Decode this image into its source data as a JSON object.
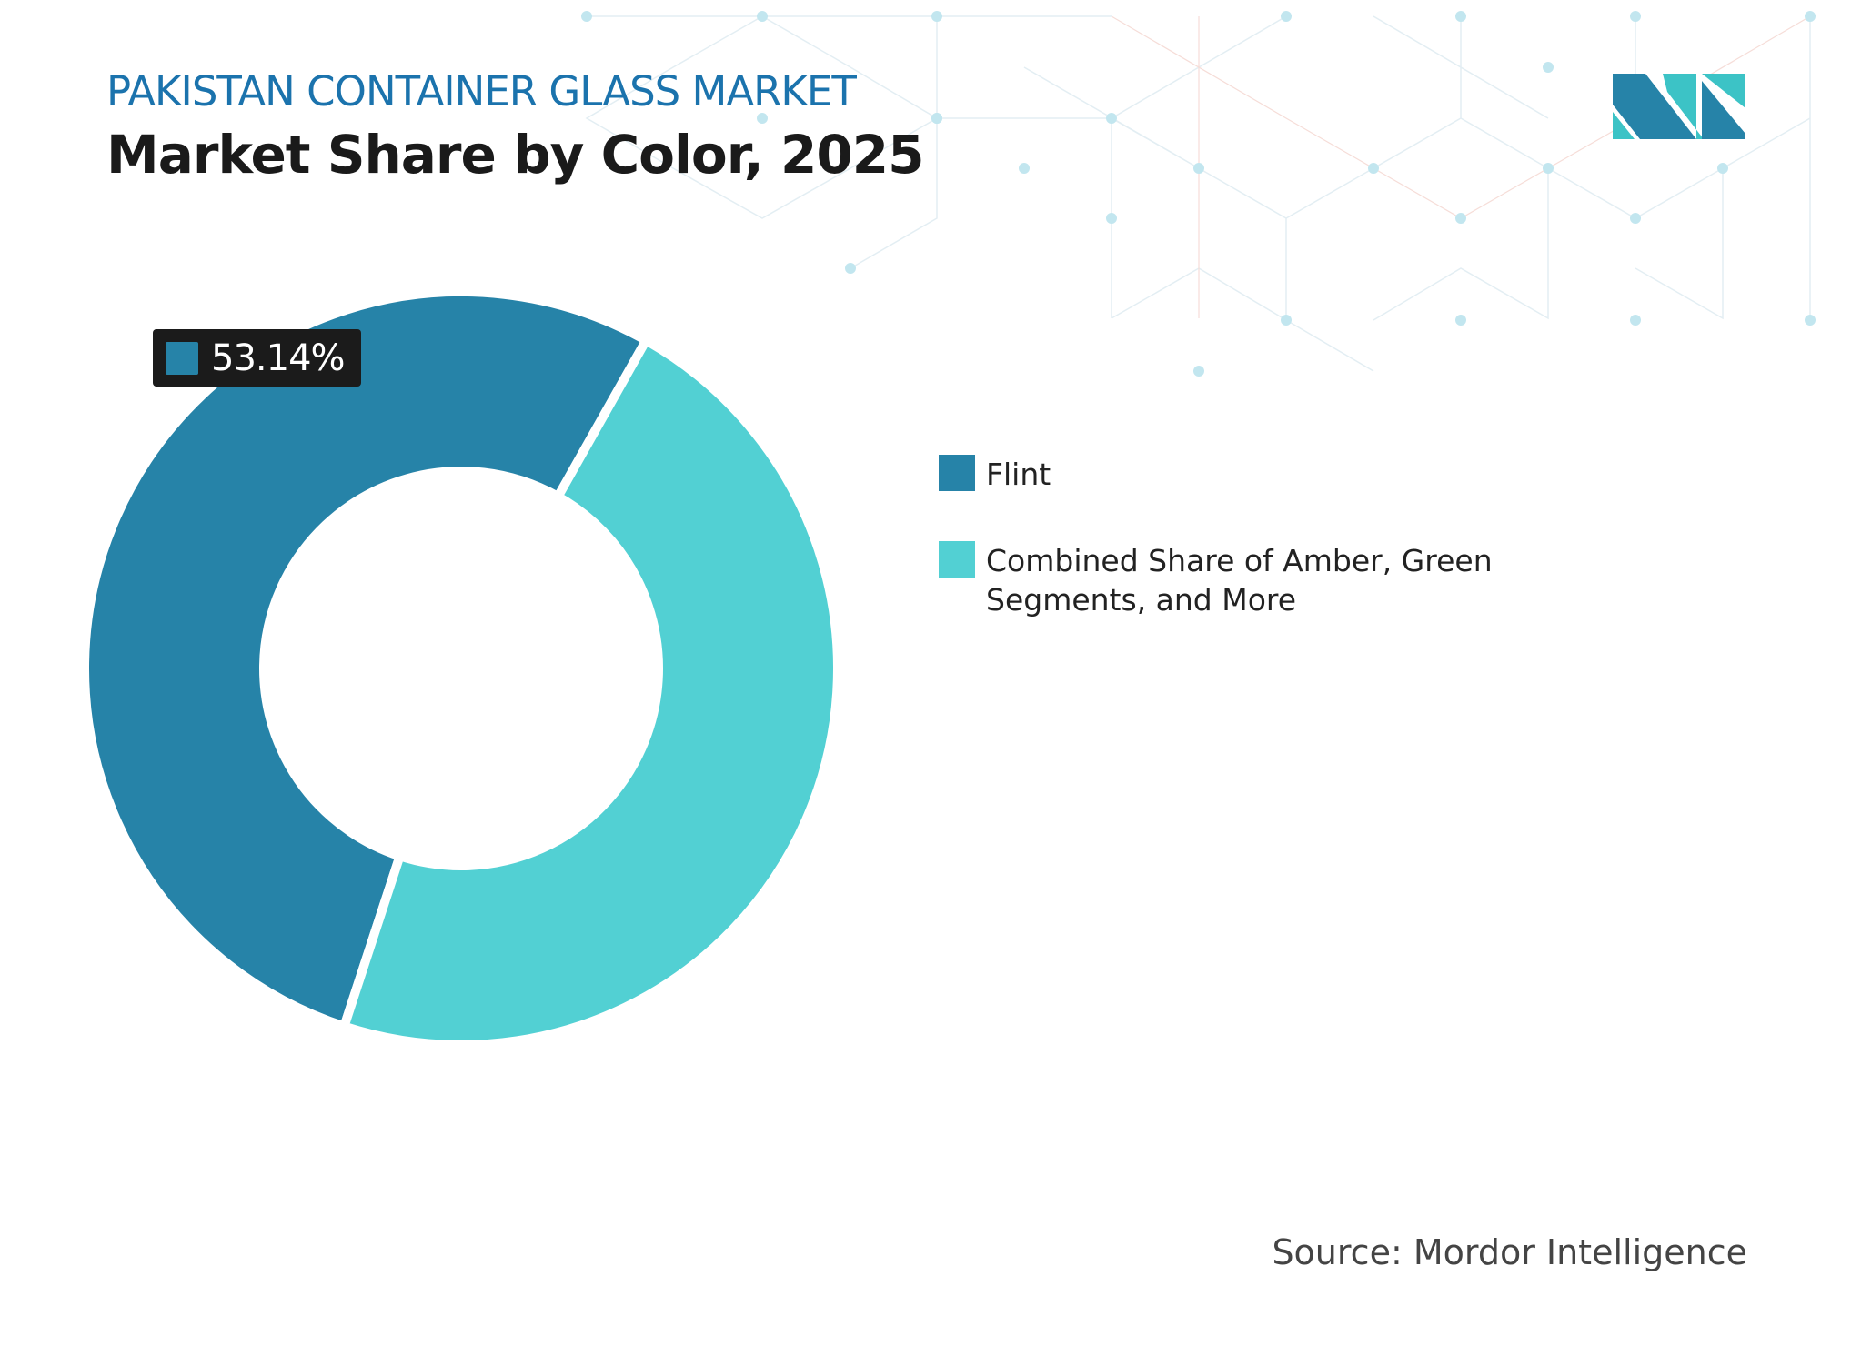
{
  "header": {
    "subtitle": "PAKISTAN CONTAINER GLASS MARKET",
    "title": "Market Share by Color, 2025"
  },
  "colors": {
    "flint": "#2683a8",
    "other": "#52d0d3",
    "title_blue": "#1b73ad"
  },
  "chart_data": {
    "type": "pie",
    "donut": true,
    "title": "Market Share by Color, 2025",
    "categories": [
      "Flint",
      "Combined Share of Amber, Green Segments, and More"
    ],
    "values": [
      53.14,
      46.86
    ],
    "data_labels": [
      {
        "category": "Flint",
        "text": "53.14%"
      }
    ],
    "legend_position": "right"
  },
  "badge": {
    "text": "53.14%"
  },
  "legend": [
    {
      "label": "Flint",
      "color": "#2683a8"
    },
    {
      "label": "Combined Share of Amber, Green Segments, and More",
      "color": "#52d0d3"
    }
  ],
  "source": "Source: Mordor Intelligence",
  "logo": {
    "text": "Mordor Intelligence"
  }
}
